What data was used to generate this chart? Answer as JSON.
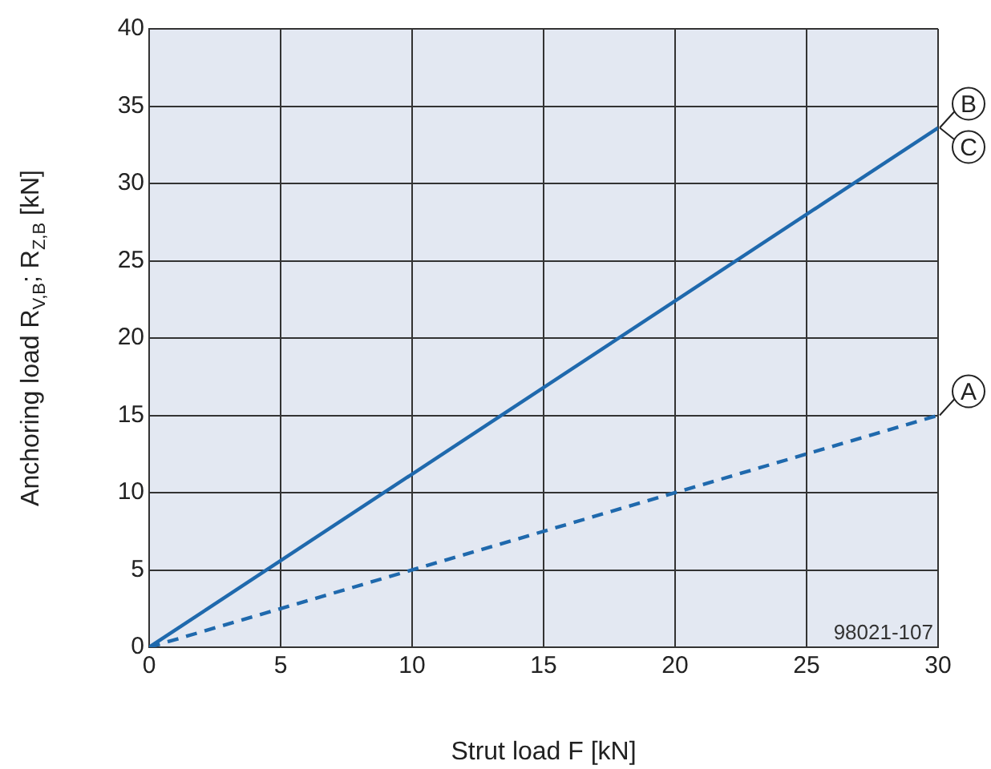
{
  "chart_data": {
    "type": "line",
    "x": [
      0,
      30
    ],
    "xlabel": "Strut load F [kN]",
    "ylabel": "Anchoring load R$_{V,B}$; R$_{Z,B}$ [kN]",
    "series": [
      {
        "name": "B",
        "color": "#1f69ad",
        "line_style": "solid",
        "values": [
          0,
          33.6
        ]
      },
      {
        "name": "A",
        "color": "#1f69ad",
        "line_style": "dashed",
        "values": [
          0,
          15
        ]
      }
    ],
    "annotations": [
      {
        "text": "C",
        "x": 30,
        "y": 33.6
      },
      "98021-107"
    ],
    "xlim": [
      0,
      30
    ],
    "xticks": [
      0,
      5,
      10,
      15,
      20,
      25,
      30
    ],
    "ylim": [
      0,
      40
    ],
    "yticks": [
      0,
      5,
      10,
      15,
      20,
      25,
      30,
      35,
      40
    ],
    "grid": true,
    "marker": "none",
    "legend": false
  }
}
